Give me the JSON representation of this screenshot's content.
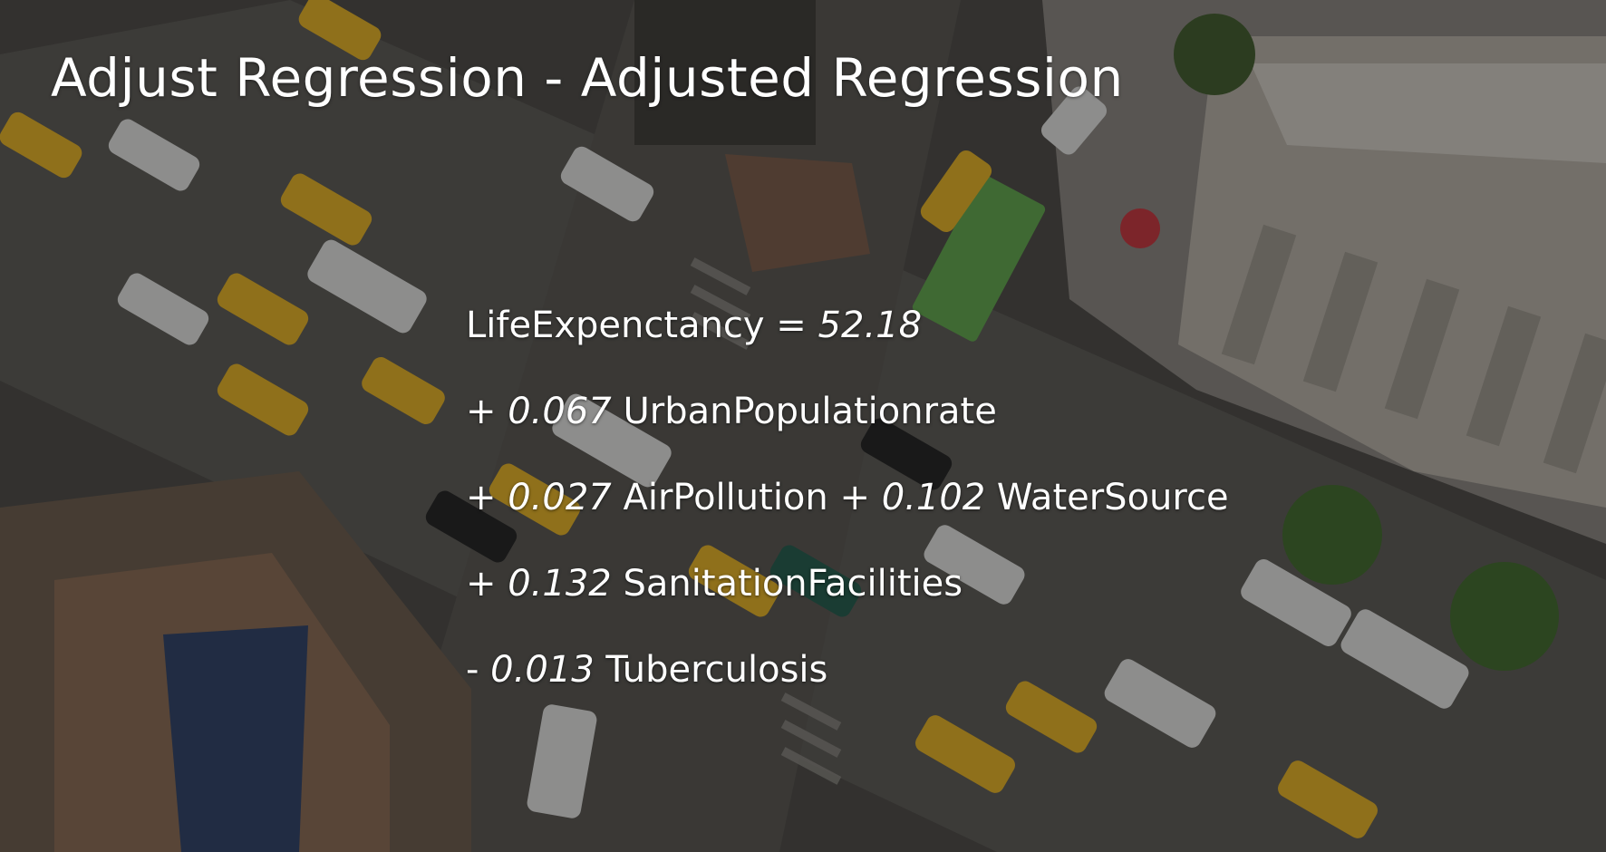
{
  "slide": {
    "title": "Adjust Regression - Adjusted Regression",
    "background": "aerial-city-street-photo"
  },
  "equation": {
    "lines": [
      [
        {
          "text": "LifeExpenctancy = ",
          "italic": false
        },
        {
          "text": "52.18",
          "italic": true
        }
      ],
      [
        {
          "text": "+ ",
          "italic": false
        },
        {
          "text": "0.067",
          "italic": true
        },
        {
          "text": " UrbanPopulationrate",
          "italic": false
        }
      ],
      [
        {
          "text": "+ ",
          "italic": false
        },
        {
          "text": "0.027",
          "italic": true
        },
        {
          "text": " AirPollution + ",
          "italic": false
        },
        {
          "text": "0.102",
          "italic": true
        },
        {
          "text": " WaterSource",
          "italic": false
        }
      ],
      [
        {
          "text": "+ ",
          "italic": false
        },
        {
          "text": "0.132",
          "italic": true
        },
        {
          "text": " SanitationFacilities",
          "italic": false
        }
      ],
      [
        {
          "text": "- ",
          "italic": false
        },
        {
          "text": "0.013",
          "italic": true
        },
        {
          "text": " Tuberculosis",
          "italic": false
        }
      ]
    ]
  },
  "colors": {
    "text": "#ffffff",
    "taxi": "#e8b321",
    "asphalt": "#3a3936",
    "bus": "#5fa84a"
  }
}
